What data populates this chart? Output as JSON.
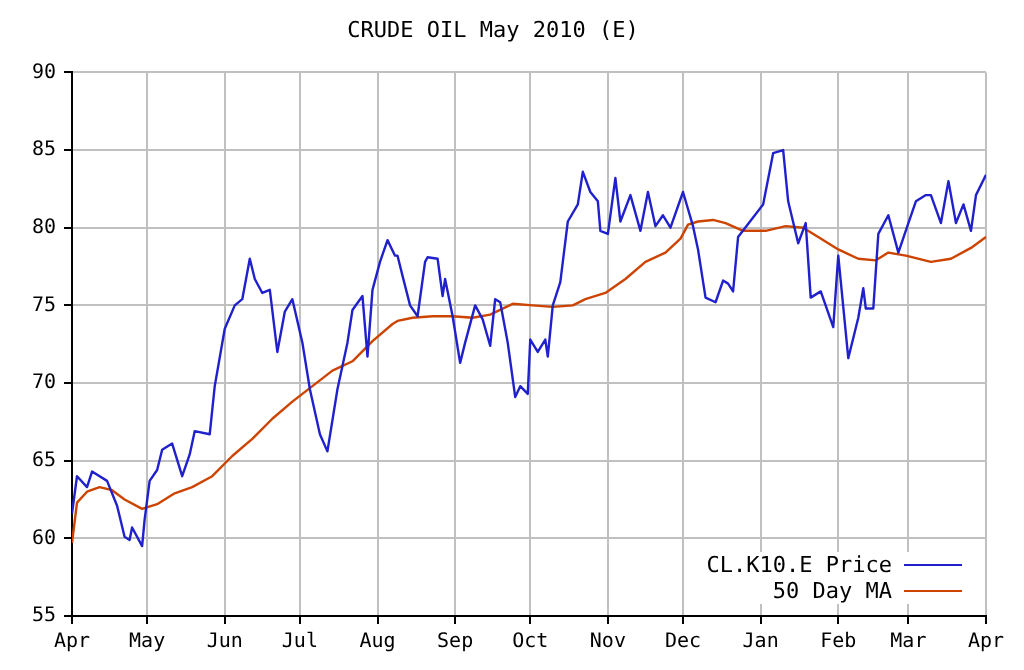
{
  "chart_data": {
    "type": "line",
    "title": "CRUDE OIL May 2010 (E)",
    "xlim": [
      "2009-04-01",
      "2010-04-01"
    ],
    "xticks": [
      {
        "value": "2009-04-01",
        "label": "Apr"
      },
      {
        "value": "2009-05-01",
        "label": "May"
      },
      {
        "value": "2009-06-01",
        "label": "Jun"
      },
      {
        "value": "2009-07-01",
        "label": "Jul"
      },
      {
        "value": "2009-08-01",
        "label": "Aug"
      },
      {
        "value": "2009-09-01",
        "label": "Sep"
      },
      {
        "value": "2009-10-01",
        "label": "Oct"
      },
      {
        "value": "2009-11-01",
        "label": "Nov"
      },
      {
        "value": "2009-12-01",
        "label": "Dec"
      },
      {
        "value": "2010-01-01",
        "label": "Jan"
      },
      {
        "value": "2010-02-01",
        "label": "Feb"
      },
      {
        "value": "2010-03-01",
        "label": "Mar"
      },
      {
        "value": "2010-04-01",
        "label": "Apr"
      }
    ],
    "ylim": [
      55,
      90
    ],
    "yticks": [
      55,
      60,
      65,
      70,
      75,
      80,
      85,
      90
    ],
    "grid": true,
    "legend": "bottom right",
    "marker": "none",
    "line_style": "solid",
    "series": [
      {
        "name": "CL.K10.E Price",
        "color": "#2020cc",
        "x": [
          "2009-04-01",
          "2009-04-03",
          "2009-04-07",
          "2009-04-09",
          "2009-04-15",
          "2009-04-19",
          "2009-04-22",
          "2009-04-24",
          "2009-04-25",
          "2009-04-29",
          "2009-04-30",
          "2009-05-02",
          "2009-05-05",
          "2009-05-07",
          "2009-05-11",
          "2009-05-15",
          "2009-05-18",
          "2009-05-20",
          "2009-05-26",
          "2009-05-28",
          "2009-06-01",
          "2009-06-05",
          "2009-06-08",
          "2009-06-11",
          "2009-06-13",
          "2009-06-16",
          "2009-06-19",
          "2009-06-22",
          "2009-06-25",
          "2009-06-28",
          "2009-07-02",
          "2009-07-05",
          "2009-07-09",
          "2009-07-12",
          "2009-07-16",
          "2009-07-20",
          "2009-07-22",
          "2009-07-26",
          "2009-07-28",
          "2009-07-30",
          "2009-08-02",
          "2009-08-05",
          "2009-08-08",
          "2009-08-09",
          "2009-08-11",
          "2009-08-14",
          "2009-08-17",
          "2009-08-20",
          "2009-08-21",
          "2009-08-25",
          "2009-08-27",
          "2009-08-28",
          "2009-08-31",
          "2009-09-03",
          "2009-09-05",
          "2009-09-09",
          "2009-09-12",
          "2009-09-15",
          "2009-09-17",
          "2009-09-19",
          "2009-09-22",
          "2009-09-25",
          "2009-09-27",
          "2009-09-30",
          "2009-10-01",
          "2009-10-04",
          "2009-10-07",
          "2009-10-08",
          "2009-10-10",
          "2009-10-13",
          "2009-10-16",
          "2009-10-20",
          "2009-10-22",
          "2009-10-25",
          "2009-10-28",
          "2009-10-29",
          "2009-11-01",
          "2009-11-04",
          "2009-11-06",
          "2009-11-10",
          "2009-11-14",
          "2009-11-17",
          "2009-11-20",
          "2009-11-23",
          "2009-11-26",
          "2009-12-01",
          "2009-12-05",
          "2009-12-07",
          "2009-12-10",
          "2009-12-14",
          "2009-12-17",
          "2009-12-19",
          "2009-12-21",
          "2009-12-23",
          "2010-01-02",
          "2010-01-06",
          "2010-01-10",
          "2010-01-12",
          "2010-01-16",
          "2010-01-19",
          "2010-01-21",
          "2010-01-25",
          "2010-01-30",
          "2010-02-01",
          "2010-02-05",
          "2010-02-09",
          "2010-02-11",
          "2010-02-12",
          "2010-02-15",
          "2010-02-17",
          "2010-02-21",
          "2010-02-25",
          "2010-03-01",
          "2010-03-04",
          "2010-03-08",
          "2010-03-10",
          "2010-03-14",
          "2010-03-17",
          "2010-03-20",
          "2010-03-23",
          "2010-03-26",
          "2010-03-28",
          "2010-04-01"
        ],
        "values": [
          61.6,
          64.0,
          63.3,
          64.3,
          63.7,
          62.1,
          60.1,
          59.9,
          60.7,
          59.5,
          61.2,
          63.7,
          64.4,
          65.7,
          66.1,
          64.0,
          65.4,
          66.9,
          66.7,
          69.8,
          73.5,
          75.0,
          75.4,
          78.0,
          76.7,
          75.8,
          76.0,
          72.0,
          74.6,
          75.4,
          72.6,
          69.6,
          66.7,
          65.6,
          69.6,
          72.6,
          74.7,
          75.6,
          71.7,
          76.0,
          77.8,
          79.2,
          78.2,
          78.2,
          76.9,
          75.0,
          74.3,
          77.8,
          78.1,
          78.0,
          75.6,
          76.7,
          74.3,
          71.3,
          72.6,
          75.0,
          74.1,
          72.4,
          75.4,
          75.2,
          72.6,
          69.1,
          69.8,
          69.3,
          72.8,
          72.0,
          72.8,
          71.7,
          75.0,
          76.5,
          80.4,
          81.5,
          83.6,
          82.3,
          81.7,
          79.8,
          79.6,
          83.2,
          80.4,
          82.1,
          79.8,
          82.3,
          80.1,
          80.8,
          80.0,
          82.3,
          80.1,
          78.6,
          75.5,
          75.2,
          76.6,
          76.4,
          75.9,
          79.4,
          81.5,
          84.8,
          85.0,
          81.7,
          79.0,
          80.3,
          75.5,
          75.9,
          73.6,
          78.2,
          71.6,
          74.2,
          76.1,
          74.8,
          74.8,
          79.6,
          80.8,
          78.4,
          80.3,
          81.7,
          82.1,
          82.1,
          80.3,
          83.0,
          80.3,
          81.5,
          79.8,
          82.1,
          83.4
        ]
      },
      {
        "name": "50 Day MA",
        "color": "#cc4400",
        "x": [
          "2009-04-01",
          "2009-04-03",
          "2009-04-07",
          "2009-04-12",
          "2009-04-17",
          "2009-04-22",
          "2009-04-29",
          "2009-05-05",
          "2009-05-12",
          "2009-05-19",
          "2009-05-27",
          "2009-06-04",
          "2009-06-12",
          "2009-06-20",
          "2009-06-28",
          "2009-07-06",
          "2009-07-14",
          "2009-07-22",
          "2009-07-30",
          "2009-08-07",
          "2009-08-09",
          "2009-08-15",
          "2009-08-23",
          "2009-08-31",
          "2009-09-08",
          "2009-09-15",
          "2009-09-24",
          "2009-10-02",
          "2009-10-10",
          "2009-10-18",
          "2009-10-23",
          "2009-10-31",
          "2009-11-08",
          "2009-11-16",
          "2009-11-24",
          "2009-11-30",
          "2009-12-03",
          "2009-12-07",
          "2009-12-13",
          "2009-12-18",
          "2009-12-25",
          "2010-01-03",
          "2010-01-11",
          "2010-01-18",
          "2010-01-24",
          "2010-02-01",
          "2010-02-09",
          "2010-02-16",
          "2010-02-21",
          "2010-02-28",
          "2010-03-10",
          "2010-03-18",
          "2010-03-26",
          "2010-04-01"
        ],
        "values": [
          59.7,
          62.3,
          63.0,
          63.3,
          63.1,
          62.5,
          61.9,
          62.2,
          62.9,
          63.3,
          64.0,
          65.3,
          66.4,
          67.7,
          68.8,
          69.8,
          70.8,
          71.4,
          72.7,
          73.8,
          74.0,
          74.2,
          74.3,
          74.3,
          74.2,
          74.4,
          75.1,
          75.0,
          74.9,
          75.0,
          75.4,
          75.8,
          76.7,
          77.8,
          78.4,
          79.3,
          80.2,
          80.4,
          80.5,
          80.3,
          79.8,
          79.8,
          80.1,
          80.0,
          79.4,
          78.6,
          78.0,
          77.9,
          78.4,
          78.2,
          77.8,
          78.0,
          78.7,
          79.4
        ]
      }
    ]
  }
}
